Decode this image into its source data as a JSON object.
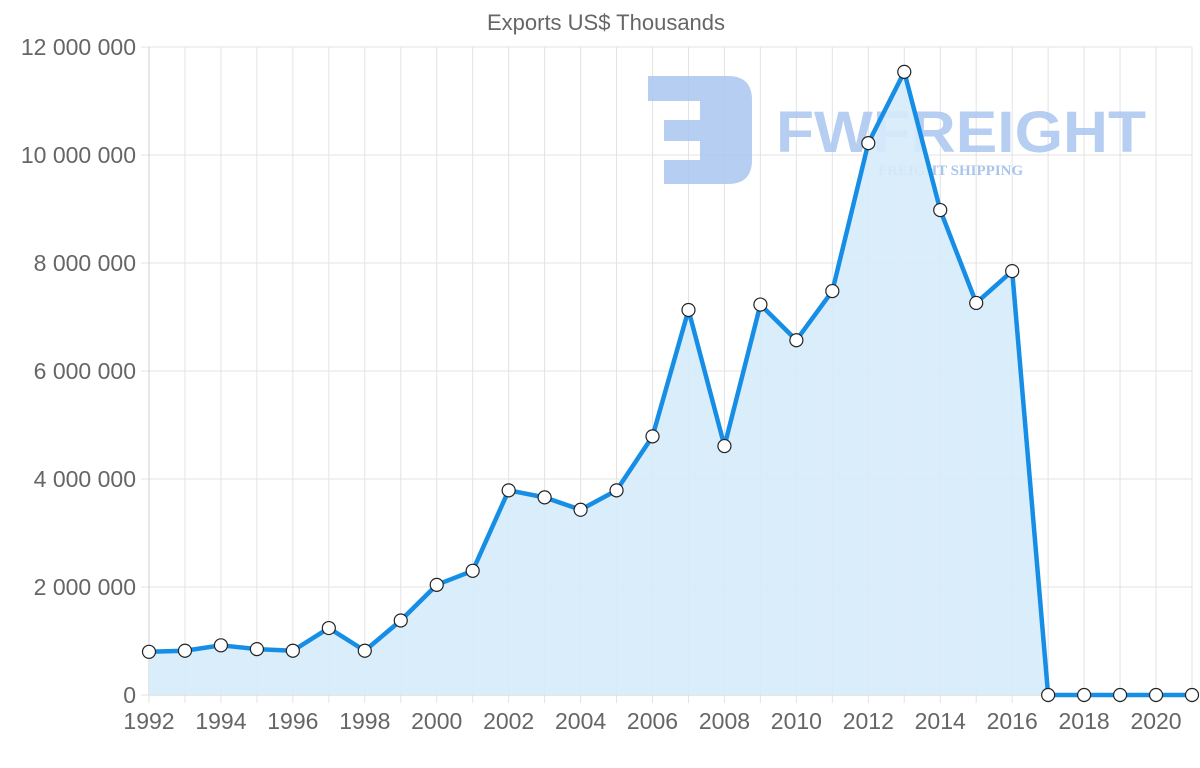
{
  "chart_data": {
    "type": "area",
    "title": "Exports US$ Thousands",
    "xlabel": "",
    "ylabel": "",
    "ylim": [
      0,
      12000000
    ],
    "yticks": [
      0,
      2000000,
      4000000,
      6000000,
      8000000,
      10000000,
      12000000
    ],
    "ytick_labels": [
      "0",
      "2 000 000",
      "4 000 000",
      "6 000 000",
      "8 000 000",
      "10 000 000",
      "12 000 000"
    ],
    "xticks": [
      1992,
      1994,
      1996,
      1998,
      2000,
      2002,
      2004,
      2006,
      2008,
      2010,
      2012,
      2014,
      2016,
      2018,
      2020
    ],
    "grid": true,
    "legend": null,
    "x": [
      1992,
      1993,
      1994,
      1995,
      1996,
      1997,
      1998,
      1999,
      2000,
      2001,
      2002,
      2003,
      2004,
      2005,
      2006,
      2007,
      2008,
      2009,
      2010,
      2011,
      2012,
      2013,
      2014,
      2015,
      2016,
      2017,
      2018,
      2019,
      2020,
      2021
    ],
    "series": [
      {
        "name": "Exports US$ Thousands",
        "values": [
          800000,
          820000,
          920000,
          850000,
          820000,
          1240000,
          820000,
          1380000,
          2040000,
          2300000,
          3790000,
          3660000,
          3430000,
          3790000,
          4790000,
          7130000,
          4610000,
          7230000,
          6570000,
          7480000,
          10220000,
          11540000,
          8980000,
          7260000,
          7850000,
          0,
          0,
          0,
          0,
          0
        ]
      }
    ]
  },
  "watermark": {
    "brand": "FWFREIGHT",
    "tagline": "FREIGHT SHIPPING"
  },
  "colors": {
    "line": "#168ee6",
    "fill": "#d6ebfb",
    "grid": "#e3e3e3",
    "text": "#666666",
    "watermark": "#a9c6f0",
    "watermark_text": "#9bbbe8"
  }
}
